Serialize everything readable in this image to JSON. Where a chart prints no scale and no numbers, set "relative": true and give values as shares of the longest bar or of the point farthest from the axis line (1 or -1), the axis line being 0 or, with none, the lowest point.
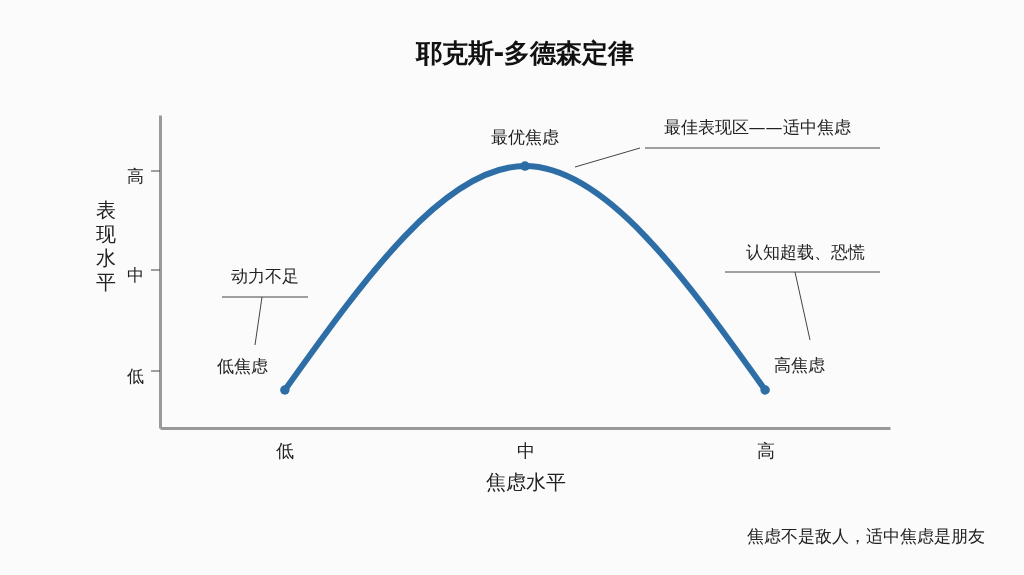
{
  "chart_data": {
    "type": "line",
    "title": "耶克斯-多德森定律",
    "xlabel": "焦虑水平",
    "ylabel": "表现水平",
    "categories": [
      "低",
      "中",
      "高"
    ],
    "relative": true,
    "series": [
      {
        "color": "#2e6ea6",
        "values": [
          0.145,
          1,
          0.145
        ]
      }
    ],
    "annotations": [
      {
        "text": "最优焦虑",
        "x": "中",
        "y": 1
      },
      {
        "text": "低焦虑",
        "x": "低",
        "y": 0.145
      },
      {
        "text": "高焦虑",
        "x": "高",
        "y": 0.145
      },
      "最佳表现区——适中焦虑",
      "动力不足",
      "认知超载、恐慌",
      "焦虑不是敌人，适中焦虑是朋友",
      "低",
      "中",
      "高"
    ],
    "grid": false,
    "marker": "circle",
    "line_style": "solid"
  }
}
